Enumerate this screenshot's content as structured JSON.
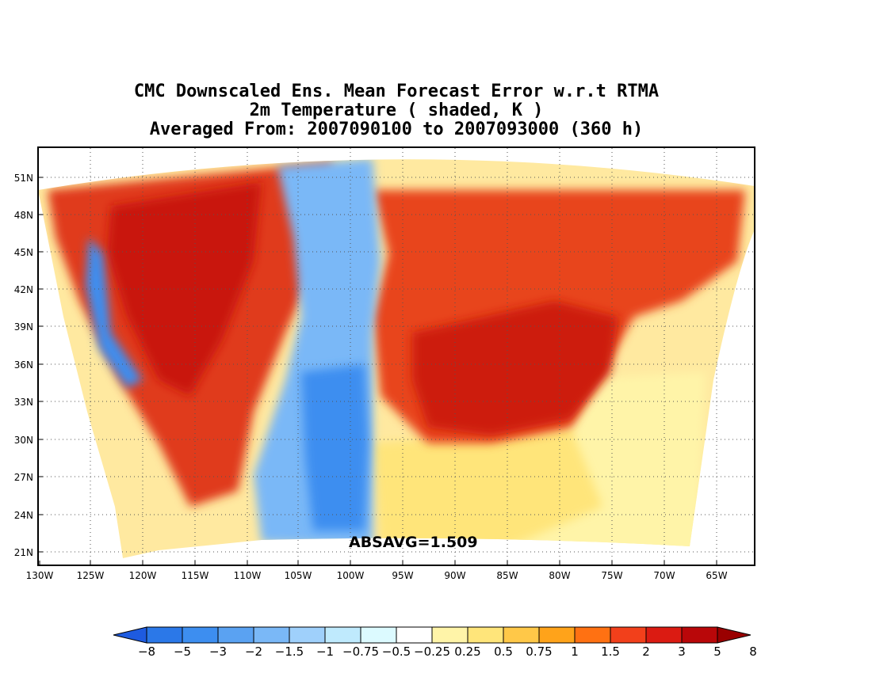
{
  "title": {
    "line1": "CMC Downscaled Ens. Mean Forecast Error w.r.t RTMA",
    "line2": "2m Temperature ( shaded, K )",
    "line3": "Averaged From: 2007090100 to 2007093000 (360 h)"
  },
  "statistic": "ABSAVG=1.509",
  "lat_labels": [
    "51N",
    "48N",
    "45N",
    "42N",
    "39N",
    "36N",
    "33N",
    "30N",
    "27N",
    "24N",
    "21N"
  ],
  "lon_labels": [
    "130W",
    "125W",
    "120W",
    "115W",
    "110W",
    "105W",
    "100W",
    "95W",
    "90W",
    "85W",
    "80W",
    "75W",
    "70W",
    "65W"
  ],
  "colorbar": {
    "labels": [
      "−8",
      "−5",
      "−3",
      "−2",
      "−1.5",
      "−1",
      "−0.75",
      "−0.5",
      "−0.25",
      "0.25",
      "0.5",
      "0.75",
      "1",
      "1.5",
      "2",
      "3",
      "5",
      "8"
    ],
    "colors": [
      "#1e5be0",
      "#2b78e8",
      "#3d8ef0",
      "#5aa2f2",
      "#7ab8f7",
      "#9fd0fb",
      "#bfeafd",
      "#dcfaff",
      "#ffffff",
      "#fff4a8",
      "#ffe57a",
      "#ffc848",
      "#ffa31a",
      "#ff7112",
      "#f2401b",
      "#db1b12",
      "#b90709",
      "#9a0000"
    ]
  },
  "regions": [
    {
      "name": "west-warm-region",
      "color": "#e03a1a"
    },
    {
      "name": "west-warmest-core",
      "color": "#c91410"
    },
    {
      "name": "east-warm-region",
      "color": "#e8451b"
    },
    {
      "name": "east-warmest-core",
      "color": "#cd1a10"
    },
    {
      "name": "plains-cold-region",
      "color": "#7ab8f7"
    },
    {
      "name": "plains-coldest-core",
      "color": "#3d8ef0"
    },
    {
      "name": "pacific-coast-cold-strip",
      "color": "#3d8ef0"
    },
    {
      "name": "southeast-mild-region",
      "color": "#ffe57a"
    },
    {
      "name": "atlantic-mild-region",
      "color": "#fff4a8"
    }
  ]
}
